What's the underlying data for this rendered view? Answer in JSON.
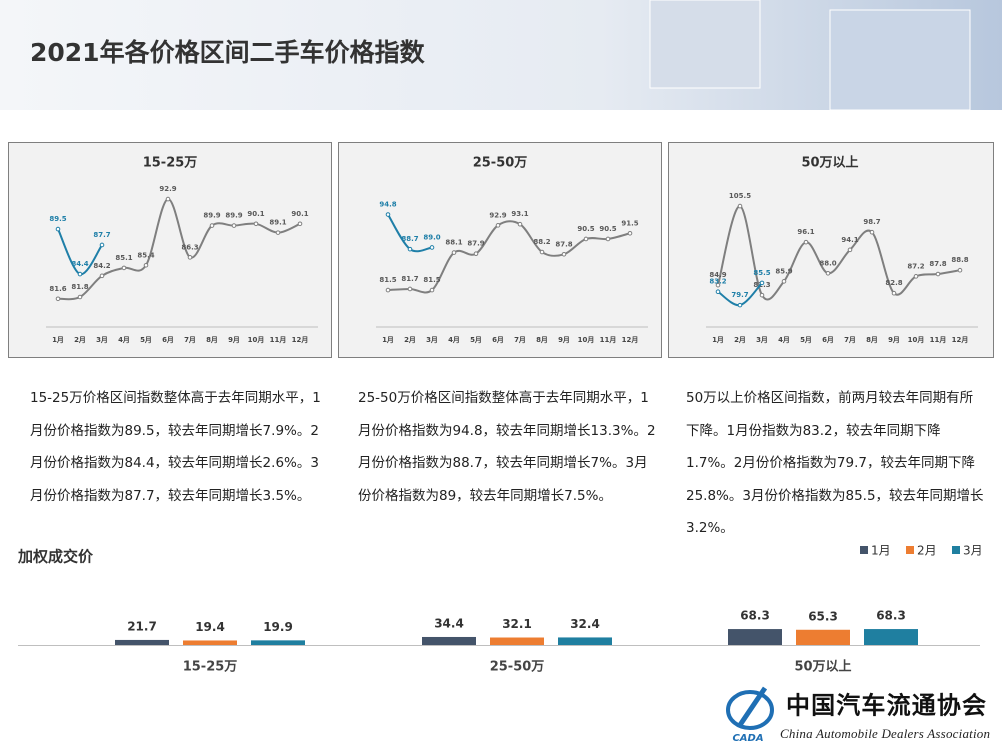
{
  "title": "2021年各价格区间二手车价格指数",
  "chart_data": [
    {
      "type": "line",
      "title": "15-25万",
      "categories": [
        "1月",
        "2月",
        "3月",
        "4月",
        "5月",
        "6月",
        "7月",
        "8月",
        "9月",
        "10月",
        "11月",
        "12月"
      ],
      "ylim": [
        78.4,
        94.5
      ],
      "series": [
        {
          "color": "#7f7f7f",
          "values": [
            81.6,
            81.8,
            84.2,
            85.1,
            85.4,
            92.9,
            86.3,
            89.9,
            89.9,
            90.1,
            89.1,
            90.1
          ],
          "value_labels": [
            "81.6",
            "81.8",
            "84.2",
            "85.1",
            "85.4",
            "92.9",
            "86.3",
            "89.9",
            "89.9",
            "90.1",
            "89.1",
            "90.1"
          ]
        },
        {
          "color": "#1f7fa8",
          "values": [
            89.5,
            84.4,
            87.7,
            null,
            null,
            null,
            null,
            null,
            null,
            null,
            null,
            null
          ],
          "value_labels": [
            "89.5",
            "84.4",
            "87.7",
            null,
            null,
            null,
            null,
            null,
            null,
            null,
            null,
            null
          ]
        }
      ]
    },
    {
      "type": "line",
      "title": "25-50万",
      "categories": [
        "1月",
        "2月",
        "3月",
        "4月",
        "5月",
        "6月",
        "7月",
        "8月",
        "9月",
        "10月",
        "11月",
        "12月"
      ],
      "ylim": [
        75,
        100
      ],
      "series": [
        {
          "color": "#7f7f7f",
          "values": [
            81.5,
            81.7,
            81.5,
            88.1,
            87.9,
            92.9,
            93.1,
            88.2,
            87.8,
            90.5,
            90.5,
            91.5
          ],
          "value_labels": [
            "81.5",
            "81.7",
            "81.5",
            "88.1",
            "87.9",
            "92.9",
            "93.1",
            "88.2",
            "87.8",
            "90.5",
            "90.5",
            "91.5"
          ]
        },
        {
          "color": "#1f7fa8",
          "values": [
            94.8,
            88.7,
            89.0,
            null,
            null,
            null,
            null,
            null,
            null,
            null,
            null,
            null
          ],
          "value_labels": [
            "94.8",
            "88.7",
            "89.0",
            null,
            null,
            null,
            null,
            null,
            null,
            null,
            null,
            null
          ]
        }
      ]
    },
    {
      "type": "line",
      "title": "50万以上",
      "categories": [
        "1月",
        "2月",
        "3月",
        "4月",
        "5月",
        "6月",
        "7月",
        "8月",
        "9月",
        "10月",
        "11月",
        "12月"
      ],
      "ylim": [
        74,
        111
      ],
      "series": [
        {
          "color": "#7f7f7f",
          "values": [
            84.9,
            105.5,
            82.3,
            85.9,
            96.1,
            88.0,
            94.1,
            98.7,
            82.8,
            87.2,
            87.8,
            88.8
          ],
          "value_labels": [
            "84.9",
            "105.5",
            "82.3",
            "85.9",
            "96.1",
            "88.0",
            "94.1",
            "98.7",
            "82.8",
            "87.2",
            "87.8",
            "88.8"
          ]
        },
        {
          "color": "#1f7fa8",
          "values": [
            83.2,
            79.7,
            85.5,
            null,
            null,
            null,
            null,
            null,
            null,
            null,
            null,
            null
          ],
          "value_labels": [
            "83.2",
            "79.7",
            "85.5",
            null,
            null,
            null,
            null,
            null,
            null,
            null,
            null,
            null
          ]
        }
      ]
    },
    {
      "type": "bar",
      "title": "加权成交价",
      "categories": [
        "15-25万",
        "25-50万",
        "50万以上"
      ],
      "ylim": [
        0,
        300
      ],
      "legend": "top-right",
      "series": [
        {
          "name": "1月",
          "color": "#44546a",
          "values": [
            21.7,
            34.4,
            68.3
          ]
        },
        {
          "name": "2月",
          "color": "#ed7d31",
          "values": [
            19.4,
            32.1,
            65.3
          ]
        },
        {
          "name": "3月",
          "color": "#1f7fa0",
          "values": [
            19.9,
            32.4,
            68.3
          ]
        }
      ]
    }
  ],
  "notes": [
    "15-25万价格区间指数整体高于去年同期水平，1月份价格指数为89.5，较去年同期增长7.9%。2月份价格指数为84.4，较去年同期增长2.6%。3月份价格指数为87.7，较去年同期增长3.5%。",
    "25-50万价格区间指数整体高于去年同期水平，1月份价格指数为94.8，较去年同期增长13.3%。2月份价格指数为88.7，较去年同期增长7%。3月份价格指数为89，较去年同期增长7.5%。",
    "50万以上价格区间指数，前两月较去年同期有所下降。1月份指数为83.2，较去年同期下降1.7%。2月份价格指数为79.7，较去年同期下降25.8%。3月份价格指数为85.5，较去年同期增长3.2%。"
  ],
  "logo": {
    "abbr": "CADA",
    "name": "中国汽车流通协会",
    "english": "China Automobile Dealers Association"
  }
}
